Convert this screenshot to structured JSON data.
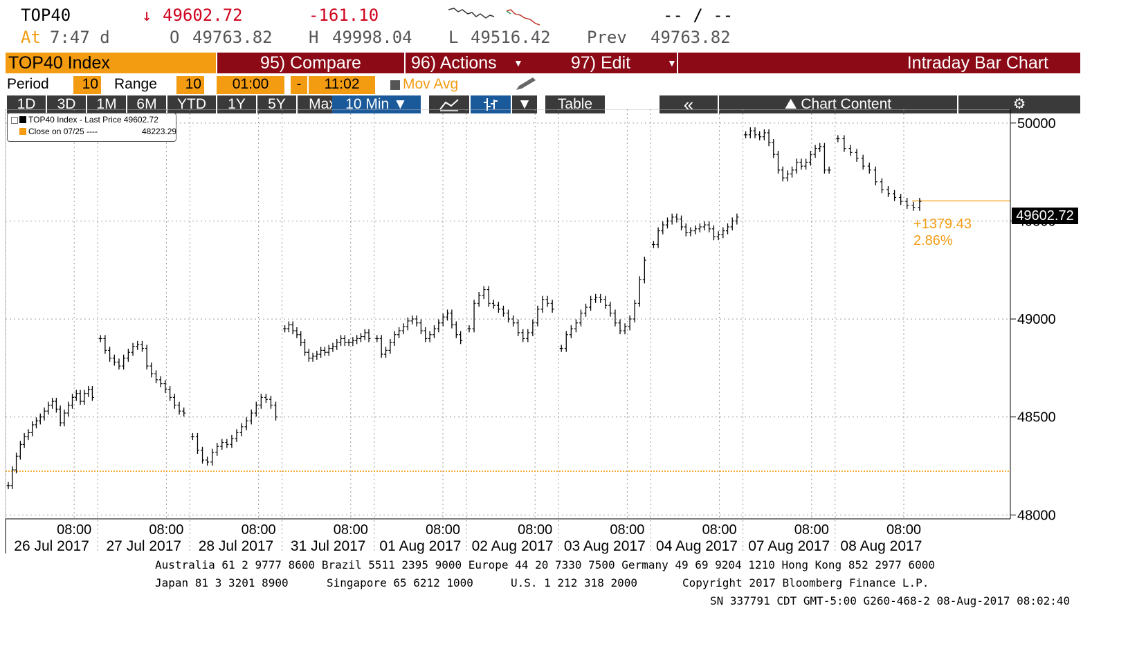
{
  "header": {
    "ticker": "TOP40",
    "arrow": "↓",
    "last": "49602.72",
    "change": "-161.10",
    "at_label": "At",
    "time": "7:47 d",
    "o_label": "O",
    "open": "49763.82",
    "h_label": "H",
    "high": "49998.04",
    "l_label": "L",
    "low": "49516.42",
    "prev_label": "Prev",
    "prev": "49763.82",
    "bidask": "-- / --"
  },
  "toolbar": {
    "security": "TOP40 Index",
    "compare": "95) Compare",
    "actions": "96) Actions",
    "edit": "97) Edit",
    "view_title": "Intraday Bar Chart"
  },
  "settings": {
    "period_label": "Period",
    "period": "10",
    "range_label": "Range",
    "range": "10",
    "start": "01:00",
    "dash": "-",
    "end": "11:02",
    "movavg": "Mov Avg"
  },
  "tabs": [
    "1D",
    "3D",
    "1M",
    "6M",
    "YTD",
    "1Y",
    "5Y",
    "Max"
  ],
  "interval": "10 Min ▼",
  "table_label": "Table",
  "collapse": "«",
  "chart_content": "Chart Content",
  "gear": "⚙",
  "legend": {
    "line1": "TOP40 Index - Last Price 49602.72",
    "line2": "Close on 07/25 ----",
    "line2_value": "48223.29"
  },
  "annotations": {
    "last_tag": "49602.72",
    "change_abs": "+1379.43",
    "change_pct": "2.86%"
  },
  "colors": {
    "brand_red": "#8b0a16",
    "orange": "#f39c12",
    "up_red": "#d0021b"
  },
  "chart_data": {
    "type": "bar",
    "subtype": "intraday-ohlc",
    "interval": "10 Min",
    "yticks": [
      48000,
      48500,
      49000,
      49500,
      50000
    ],
    "ylim": [
      47980,
      50070
    ],
    "grid": true,
    "reference_line": 48223.29,
    "last_price": 49602.72,
    "days": [
      {
        "date": "26 Jul 2017",
        "time_tick": "08:00",
        "prices": [
          48150,
          48230,
          48300,
          48360,
          48400,
          48420,
          48460,
          48480,
          48500,
          48530,
          48560,
          48580,
          48540,
          48470,
          48520,
          48560,
          48600,
          48620,
          48580,
          48620,
          48640,
          48600
        ]
      },
      {
        "date": "27 Jul 2017",
        "time_tick": "08:00",
        "prices": [
          48900,
          48840,
          48800,
          48780,
          48760,
          48800,
          48830,
          48860,
          48870,
          48850,
          48760,
          48720,
          48690,
          48670,
          48640,
          48600,
          48560,
          48530,
          48520
        ]
      },
      {
        "date": "28 Jul 2017",
        "time_tick": "08:00",
        "prices": [
          48400,
          48330,
          48280,
          48270,
          48320,
          48350,
          48370,
          48360,
          48390,
          48420,
          48450,
          48480,
          48520,
          48560,
          48600,
          48590,
          48560,
          48500
        ]
      },
      {
        "date": "31 Jul 2017",
        "time_tick": "08:00",
        "prices": [
          48950,
          48970,
          48940,
          48920,
          48880,
          48830,
          48800,
          48810,
          48820,
          48840,
          48830,
          48850,
          48860,
          48880,
          48900,
          48880,
          48880,
          48890,
          48900,
          48910,
          48930,
          48900
        ]
      },
      {
        "date": "01 Aug 2017",
        "time_tick": "08:00",
        "prices": [
          48900,
          48820,
          48840,
          48880,
          48920,
          48940,
          48960,
          48990,
          49000,
          48980,
          48940,
          48900,
          48920,
          48950,
          48980,
          49010,
          49030,
          48970,
          48920,
          48890
        ]
      },
      {
        "date": "02 Aug 2017",
        "time_tick": "08:00",
        "prices": [
          48950,
          49080,
          49120,
          49150,
          49080,
          49070,
          49050,
          49030,
          49000,
          48980,
          48930,
          48900,
          48930,
          48980,
          49050,
          49100,
          49080,
          49050
        ]
      },
      {
        "date": "03 Aug 2017",
        "time_tick": "08:00",
        "prices": [
          48850,
          48920,
          48950,
          48980,
          49030,
          49060,
          49100,
          49110,
          49100,
          49070,
          49030,
          48980,
          48940,
          48960,
          49000,
          49080,
          49200,
          49300
        ]
      },
      {
        "date": "04 Aug 2017",
        "time_tick": "08:00",
        "prices": [
          49380,
          49450,
          49480,
          49500,
          49520,
          49510,
          49470,
          49440,
          49450,
          49460,
          49470,
          49480,
          49460,
          49420,
          49430,
          49450,
          49470,
          49500,
          49520
        ]
      },
      {
        "date": "07 Aug 2017",
        "time_tick": "08:00",
        "prices": [
          49940,
          49960,
          49940,
          49930,
          49950,
          49900,
          49840,
          49760,
          49720,
          49740,
          49760,
          49800,
          49780,
          49800,
          49840,
          49870,
          49880,
          49760,
          49760
        ]
      },
      {
        "date": "08 Aug 2017",
        "time_tick": "08:00",
        "prices": [
          49920,
          49870,
          49850,
          49820,
          49780,
          49760,
          49700,
          49660,
          49640,
          49620,
          49600,
          49580,
          49570,
          49600
        ]
      }
    ]
  },
  "footer": {
    "line1": "Australia 61 2 9777 8600 Brazil 5511 2395 9000 Europe 44 20 7330 7500 Germany 49 69 9204 1210 Hong Kong 852 2977 6000",
    "line2a": "Japan 81 3 3201 8900",
    "line2b": "Singapore 65 6212 1000",
    "line2c": "U.S. 1 212 318 2000",
    "line2d": "Copyright 2017 Bloomberg Finance L.P.",
    "line3": "SN 337791 CDT  GMT-5:00 G260-468-2 08-Aug-2017 08:02:40"
  }
}
